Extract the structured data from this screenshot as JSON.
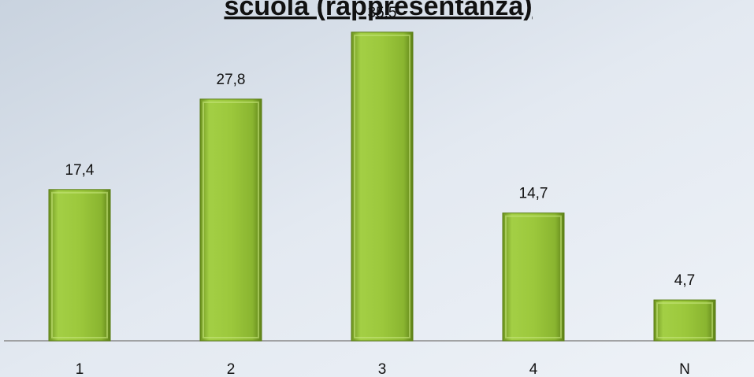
{
  "chart_data": {
    "type": "bar",
    "title": "scuola (rappresentanza)",
    "categories": [
      "1",
      "2",
      "3",
      "4",
      "N"
    ],
    "values": [
      17.4,
      27.8,
      35.5,
      14.7,
      4.7
    ],
    "value_labels": [
      "17,4",
      "27,8",
      "35,5",
      "14,7",
      "4,7"
    ],
    "color": "#8db832",
    "ylim": [
      0,
      39.2
    ]
  }
}
